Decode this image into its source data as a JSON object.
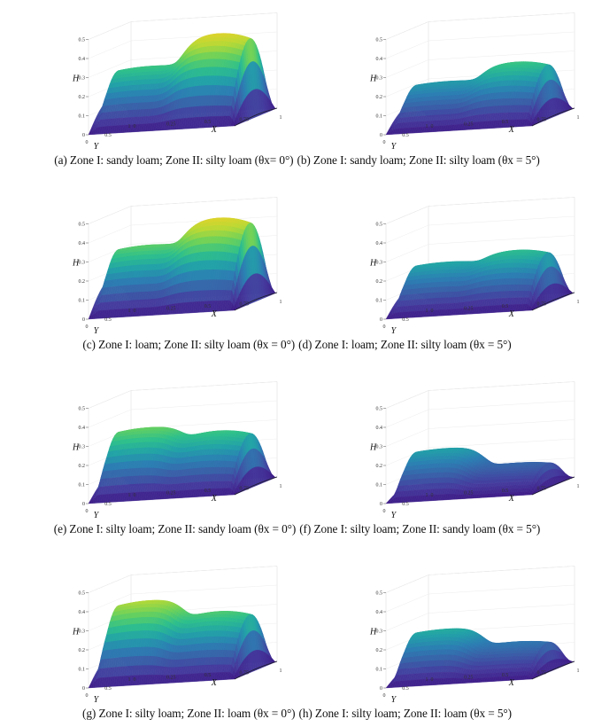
{
  "figure": {
    "panels": [
      {
        "id": "a",
        "caption": "(a) Zone I: sandy loam; Zone II: silty loam (θx= 0°)",
        "theta": 0,
        "peakI": 0.3,
        "peakII": 0.45,
        "h_end": 0.14,
        "ticks_x": [
          "0",
          "0.25",
          "0.5",
          "0.75",
          "1"
        ],
        "ticks_y": [
          "0.5",
          "1"
        ]
      },
      {
        "id": "b",
        "caption": "(b) Zone I: sandy loam; Zone II: silty loam (θx = 5°)",
        "theta": 5,
        "peakI": 0.22,
        "peakII": 0.3,
        "h_end": 0.1,
        "ticks_x": [
          "0",
          "0.25",
          "0.5",
          "0.75",
          "1"
        ],
        "ticks_y": [
          "0.5",
          "1"
        ]
      },
      {
        "id": "c",
        "caption": "(c) Zone I: loam; Zone II: silty loam (θx = 0°)",
        "theta": 0,
        "peakI": 0.33,
        "peakII": 0.45,
        "h_end": 0.16,
        "ticks_x": [
          "0",
          "0.25",
          "0.5",
          "0.75",
          "1"
        ],
        "ticks_y": [
          "0.5",
          "1"
        ]
      },
      {
        "id": "d",
        "caption": "(d) Zone I: loam; Zone II: silty loam (θx = 5°)",
        "theta": 5,
        "peakI": 0.24,
        "peakII": 0.28,
        "h_end": 0.1,
        "ticks_x": [
          "0",
          "0.25",
          "0.5",
          "0.75",
          "1"
        ],
        "ticks_y": [
          "0.5",
          "1"
        ]
      },
      {
        "id": "e",
        "caption": "(e) Zone I: silty loam; Zone II: sandy loam (θx = 0°)",
        "theta": 0,
        "peakI": 0.34,
        "peakII": 0.3,
        "h_end": 0.1,
        "ticks_x": [
          "0",
          "0.25",
          "0.5",
          "0.75",
          "1"
        ],
        "ticks_y": [
          "0.5",
          "1"
        ]
      },
      {
        "id": "f",
        "caption": "(f) Zone I: silty loam; Zone II: sandy loam (θx = 5°)",
        "theta": 5,
        "peakI": 0.23,
        "peakII": 0.13,
        "h_end": 0.05,
        "ticks_x": [
          "0",
          "0.25",
          "0.5",
          "0.75",
          "1"
        ],
        "ticks_y": [
          "0.5",
          "1"
        ]
      },
      {
        "id": "g",
        "caption": "(g) Zone I: silty loam; Zone II: loam (θx = 0°)",
        "theta": 0,
        "peakI": 0.4,
        "peakII": 0.32,
        "h_end": 0.12,
        "ticks_x": [
          "0",
          "0.25",
          "0.5",
          "0.75",
          "1"
        ],
        "ticks_y": [
          "0.5",
          "1"
        ]
      },
      {
        "id": "h",
        "caption": "(h) Zone I: silty loam; Zone II: loam (θx = 5°)",
        "theta": 5,
        "peakI": 0.25,
        "peakII": 0.16,
        "h_end": 0.06,
        "ticks_x": [
          "0",
          "0.25",
          "0.5",
          "0.75",
          "1"
        ],
        "ticks_y": [
          "0.5",
          "1"
        ]
      }
    ],
    "ticks_h": [
      "0",
      "0.1",
      "0.2",
      "0.3",
      "0.4",
      "0.5"
    ],
    "labels": {
      "H": "H",
      "X": "X",
      "Y": "Y"
    },
    "colormap": [
      "#3e1b87",
      "#453b9e",
      "#3b5fa8",
      "#2c7fb3",
      "#23a2a8",
      "#2fc08c",
      "#6ad15c",
      "#b8d936",
      "#e6d22a"
    ]
  }
}
